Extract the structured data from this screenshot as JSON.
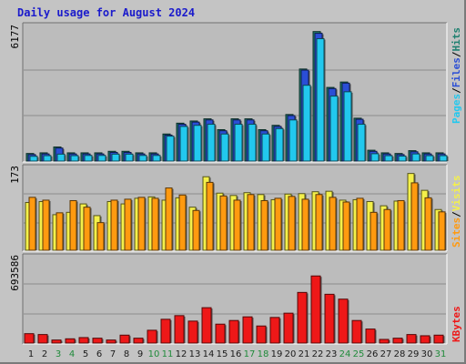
{
  "title": "Daily usage for August 2024",
  "colors": {
    "hits": "#1f8070",
    "files": "#2a4ed6",
    "pages": "#22c8ee",
    "visits": "#f4f04a",
    "sites": "#ff9a10",
    "kbytes": "#ee1818",
    "weekend": "#1f8a3a",
    "weekday": "#1a1a1a"
  },
  "chart_data": [
    {
      "type": "bar",
      "panel": "hits-files-pages",
      "scale_label": "6177",
      "ylim": [
        0,
        6177
      ],
      "categories": [
        "1",
        "2",
        "3",
        "4",
        "5",
        "6",
        "7",
        "8",
        "9",
        "10",
        "11",
        "12",
        "13",
        "14",
        "15",
        "16",
        "17",
        "18",
        "19",
        "20",
        "21",
        "22",
        "23",
        "24",
        "25",
        "26",
        "27",
        "28",
        "29",
        "30",
        "31"
      ],
      "weekend_categories": [
        "3",
        "4",
        "10",
        "11",
        "17",
        "18",
        "24",
        "25",
        "31"
      ],
      "legend": [
        {
          "label": "Hits",
          "key": "hits"
        },
        {
          "label": "Files",
          "key": "files"
        },
        {
          "label": "Pages",
          "key": "pages"
        }
      ],
      "series": [
        {
          "name": "Hits",
          "values": [
            350,
            380,
            650,
            380,
            380,
            380,
            450,
            450,
            380,
            380,
            1250,
            1750,
            1850,
            1950,
            1450,
            1950,
            1950,
            1450,
            1650,
            2150,
            4250,
            5980,
            3400,
            3650,
            1980,
            500,
            380,
            350,
            480,
            380,
            380
          ]
        },
        {
          "name": "Files",
          "values": [
            300,
            330,
            600,
            330,
            330,
            330,
            400,
            400,
            330,
            330,
            1200,
            1700,
            1800,
            1900,
            1400,
            1900,
            1900,
            1400,
            1600,
            2100,
            4200,
            5900,
            3350,
            3600,
            1930,
            450,
            330,
            300,
            430,
            330,
            330
          ]
        },
        {
          "name": "Pages",
          "values": [
            220,
            250,
            320,
            250,
            260,
            260,
            320,
            320,
            260,
            260,
            1150,
            1600,
            1650,
            1700,
            1250,
            1700,
            1700,
            1250,
            1500,
            1900,
            3500,
            5650,
            3000,
            3200,
            1700,
            340,
            250,
            230,
            330,
            250,
            250
          ]
        }
      ]
    },
    {
      "type": "bar",
      "panel": "visits-sites",
      "scale_label": "173",
      "ylim": [
        0,
        173
      ],
      "legend": [
        {
          "label": "Visits",
          "key": "visits"
        },
        {
          "label": "Sites",
          "key": "sites"
        }
      ],
      "series": [
        {
          "name": "Visits",
          "values": [
            102,
            104,
            76,
            81,
            99,
            74,
            104,
            99,
            111,
            114,
            107,
            112,
            92,
            157,
            122,
            117,
            123,
            119,
            108,
            120,
            121,
            125,
            126,
            107,
            108,
            104,
            95,
            105,
            164,
            128,
            87
          ]
        },
        {
          "name": "Sites",
          "values": [
            113,
            107,
            80,
            106,
            92,
            59,
            107,
            109,
            113,
            111,
            133,
            118,
            85,
            145,
            116,
            107,
            119,
            106,
            111,
            115,
            109,
            119,
            113,
            103,
            111,
            81,
            87,
            106,
            144,
            112,
            82
          ]
        }
      ]
    },
    {
      "type": "bar",
      "panel": "kbytes",
      "scale_label": "693586",
      "ylim": [
        0,
        693586
      ],
      "legend": [
        {
          "label": "KBytes",
          "key": "kbytes"
        }
      ],
      "series": [
        {
          "name": "KBytes",
          "values": [
            77000,
            70000,
            25000,
            35000,
            45000,
            40000,
            25000,
            65000,
            40000,
            105000,
            195000,
            225000,
            180000,
            290000,
            155000,
            185000,
            215000,
            140000,
            210000,
            245000,
            415000,
            550000,
            400000,
            360000,
            185000,
            115000,
            30000,
            40000,
            70000,
            60000,
            65000
          ]
        }
      ]
    }
  ]
}
